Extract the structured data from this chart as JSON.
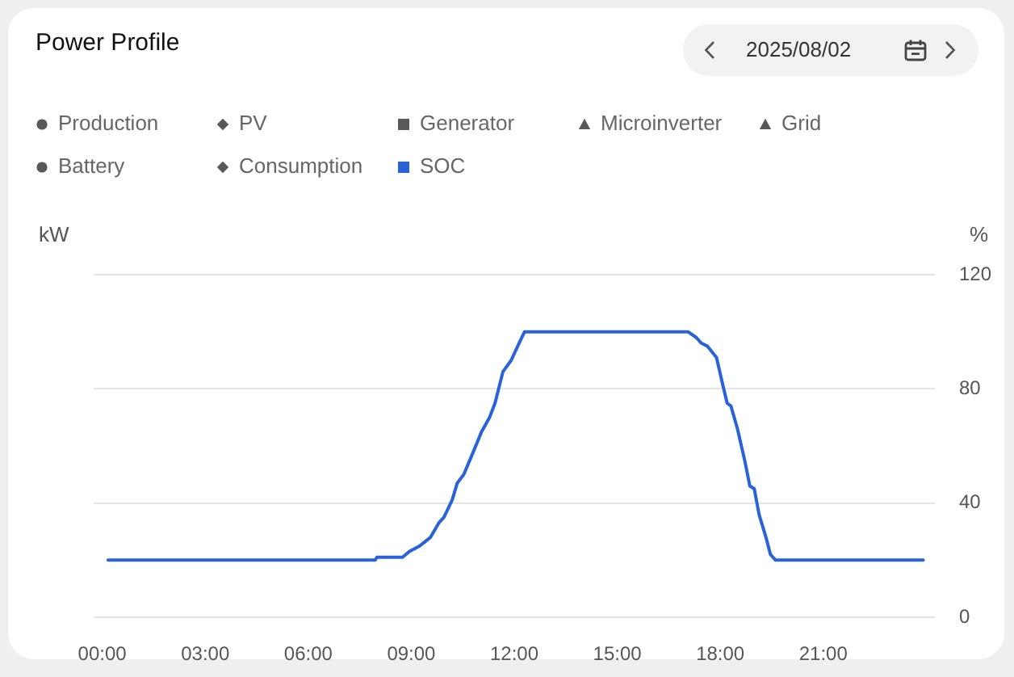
{
  "chart_data": {
    "type": "line",
    "title": "Power Profile",
    "subtitle": "2025/08/02",
    "ylabel": "%",
    "y2label": "kW",
    "x": [
      0.17,
      7.95,
      8.0,
      8.75,
      8.94,
      9.25,
      9.56,
      9.8,
      9.95,
      10.19,
      10.34,
      10.53,
      10.74,
      11.05,
      11.28,
      11.44,
      11.67,
      11.91,
      12.14,
      12.3,
      17.06,
      17.3,
      17.45,
      17.62,
      17.89,
      18.08,
      18.2,
      18.31,
      18.5,
      18.71,
      18.86,
      18.99,
      19.13,
      19.33,
      19.46,
      19.61,
      23.91
    ],
    "xlim": [
      -0.25,
      24.25
    ],
    "xticks": [
      {
        "value": 0,
        "label": "00:00"
      },
      {
        "value": 3,
        "label": "03:00"
      },
      {
        "value": 6,
        "label": "06:00"
      },
      {
        "value": 9,
        "label": "09:00"
      },
      {
        "value": 12,
        "label": "12:00"
      },
      {
        "value": 15,
        "label": "15:00"
      },
      {
        "value": 18,
        "label": "18:00"
      },
      {
        "value": 21,
        "label": "21:00"
      }
    ],
    "ylim": [
      0,
      120
    ],
    "yticks": [
      0,
      40,
      80,
      120
    ],
    "series": [
      {
        "name": "Production",
        "color": "#595959",
        "marker": "circle",
        "values": [
          null,
          null,
          null,
          null,
          null,
          null,
          null,
          null,
          null,
          null,
          null,
          null,
          null,
          null,
          null,
          null,
          null,
          null,
          null,
          null,
          null,
          null,
          null,
          null,
          null,
          null,
          null,
          null,
          null,
          null,
          null,
          null,
          null,
          null,
          null,
          null,
          null
        ]
      },
      {
        "name": "PV",
        "color": "#595959",
        "marker": "diamond",
        "values": [
          null,
          null,
          null,
          null,
          null,
          null,
          null,
          null,
          null,
          null,
          null,
          null,
          null,
          null,
          null,
          null,
          null,
          null,
          null,
          null,
          null,
          null,
          null,
          null,
          null,
          null,
          null,
          null,
          null,
          null,
          null,
          null,
          null,
          null,
          null,
          null,
          null
        ]
      },
      {
        "name": "Generator",
        "color": "#595959",
        "marker": "square",
        "values": [
          null,
          null,
          null,
          null,
          null,
          null,
          null,
          null,
          null,
          null,
          null,
          null,
          null,
          null,
          null,
          null,
          null,
          null,
          null,
          null,
          null,
          null,
          null,
          null,
          null,
          null,
          null,
          null,
          null,
          null,
          null,
          null,
          null,
          null,
          null,
          null,
          null
        ]
      },
      {
        "name": "Microinverter",
        "color": "#595959",
        "marker": "triangle",
        "values": [
          null,
          null,
          null,
          null,
          null,
          null,
          null,
          null,
          null,
          null,
          null,
          null,
          null,
          null,
          null,
          null,
          null,
          null,
          null,
          null,
          null,
          null,
          null,
          null,
          null,
          null,
          null,
          null,
          null,
          null,
          null,
          null,
          null,
          null,
          null,
          null,
          null
        ]
      },
      {
        "name": "Grid",
        "color": "#595959",
        "marker": "triangle",
        "values": [
          null,
          null,
          null,
          null,
          null,
          null,
          null,
          null,
          null,
          null,
          null,
          null,
          null,
          null,
          null,
          null,
          null,
          null,
          null,
          null,
          null,
          null,
          null,
          null,
          null,
          null,
          null,
          null,
          null,
          null,
          null,
          null,
          null,
          null,
          null,
          null,
          null
        ]
      },
      {
        "name": "Battery",
        "color": "#595959",
        "marker": "circle",
        "values": [
          null,
          null,
          null,
          null,
          null,
          null,
          null,
          null,
          null,
          null,
          null,
          null,
          null,
          null,
          null,
          null,
          null,
          null,
          null,
          null,
          null,
          null,
          null,
          null,
          null,
          null,
          null,
          null,
          null,
          null,
          null,
          null,
          null,
          null,
          null,
          null,
          null
        ]
      },
      {
        "name": "Consumption",
        "color": "#595959",
        "marker": "diamond",
        "values": [
          null,
          null,
          null,
          null,
          null,
          null,
          null,
          null,
          null,
          null,
          null,
          null,
          null,
          null,
          null,
          null,
          null,
          null,
          null,
          null,
          null,
          null,
          null,
          null,
          null,
          null,
          null,
          null,
          null,
          null,
          null,
          null,
          null,
          null,
          null,
          null,
          null
        ]
      },
      {
        "name": "SOC",
        "color": "#2962d9",
        "values": [
          20,
          20,
          21,
          21,
          23,
          25,
          28,
          33,
          35,
          41,
          47,
          50,
          56,
          65,
          70,
          75,
          86,
          90,
          96,
          100,
          100,
          98,
          96,
          95,
          91,
          81,
          75,
          74,
          66,
          55,
          46,
          45,
          36,
          28,
          22,
          20,
          20
        ]
      }
    ],
    "grid": "y",
    "legend": "top left"
  }
}
